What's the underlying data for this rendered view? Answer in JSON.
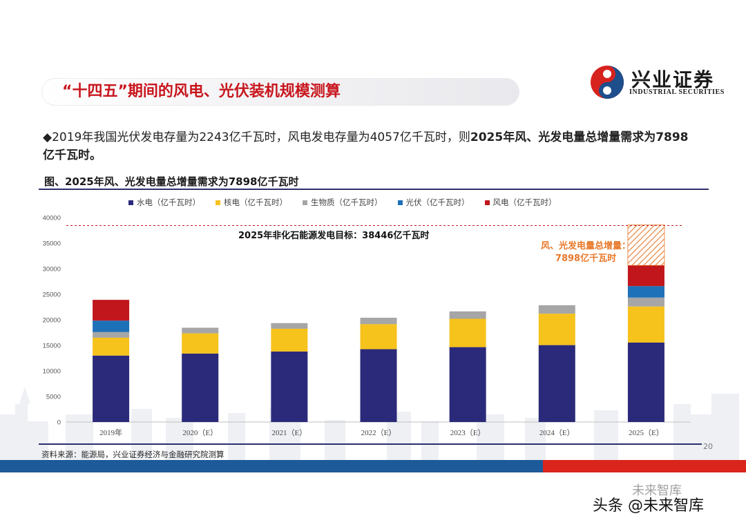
{
  "header": {
    "title": "“十四五”期间的风电、光伏装机规模测算",
    "logo_cn": "兴业证券",
    "logo_en": "INDUSTRIAL SECURITIES"
  },
  "bullet": {
    "marker": "◆",
    "text_plain": "2019年我国光伏发电存量为2243亿千瓦时，风电发电存量为4057亿千瓦时，则",
    "text_bold": "2025年风、光发电量总增量需求为7898亿千瓦时。"
  },
  "figure": {
    "title": "图、2025年风、光发电量总增量需求为7898亿千瓦时",
    "target_label": "2025年非化石能源发电目标：38446亿千瓦时",
    "increment_label_line1": "风、光发电量总增量：",
    "increment_label_line2": "7898亿千瓦时"
  },
  "chart_data": {
    "type": "bar",
    "stacked": true,
    "categories": [
      "2019年",
      "2020（E）",
      "2021（E）",
      "2022（E）",
      "2023（E）",
      "2024（E）",
      "2025（E）"
    ],
    "series": [
      {
        "name": "水电（亿千瓦时）",
        "color": "#2b2a7a",
        "values": [
          13000,
          13400,
          13800,
          14250,
          14650,
          15050,
          15550
        ]
      },
      {
        "name": "核电（亿千瓦时）",
        "color": "#f6c21c",
        "values": [
          3500,
          3950,
          4450,
          4900,
          5550,
          6150,
          7050
        ]
      },
      {
        "name": "生物质（亿千瓦时）",
        "color": "#a6a6a6",
        "values": [
          1100,
          1100,
          1100,
          1250,
          1450,
          1650,
          1750
        ]
      },
      {
        "name": "光伏（亿千瓦时）",
        "color": "#1d71b8",
        "values": [
          2243,
          0,
          0,
          0,
          0,
          0,
          2243
        ]
      },
      {
        "name": "风电（亿千瓦时）",
        "color": "#c0161c",
        "values": [
          4057,
          0,
          0,
          0,
          0,
          0,
          4057
        ]
      }
    ],
    "increment": {
      "category": "2025（E）",
      "value": 7898,
      "fill": "hatched",
      "color": "#e8782a"
    },
    "target_line": {
      "value": 38446,
      "style": "dashed",
      "color": "#c0161c"
    },
    "ylim": [
      0,
      40000
    ],
    "yticks": [
      0,
      5000,
      10000,
      15000,
      20000,
      25000,
      30000,
      35000,
      40000
    ],
    "legend_position": "top",
    "grid": false
  },
  "source": "资料来源：能源局，兴业证券经济与金融研究院测算",
  "page_number": "20",
  "watermark": {
    "main": "头条 @未来智库",
    "faint": "未来智库"
  }
}
